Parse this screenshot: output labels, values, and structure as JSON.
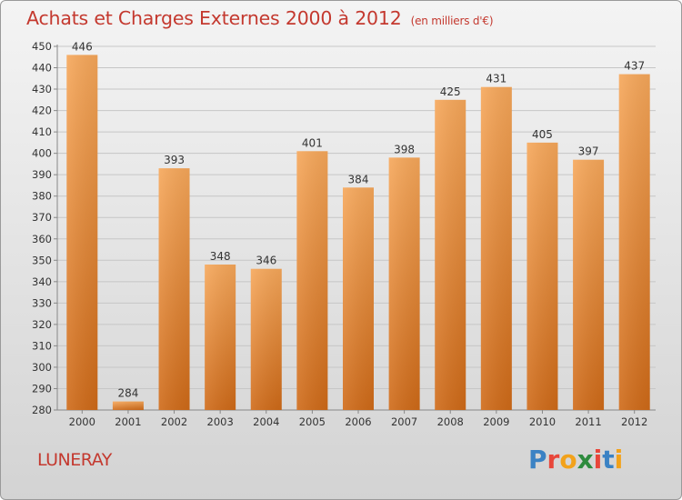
{
  "title": "Achats et Charges Externes 2000 à 2012",
  "subtitle": "(en milliers d'€)",
  "commune": "LUNERAY",
  "logo": {
    "letters": [
      "P",
      "r",
      "o",
      "x",
      "i",
      "t",
      "i"
    ],
    "colors": [
      "#3b82c4",
      "#e8463a",
      "#f2a21b",
      "#2e8b3e",
      "#e8463a",
      "#3b82c4",
      "#f2a21b"
    ]
  },
  "colors": {
    "bar_light": "#f6a75a",
    "bar_dark": "#cf6a18",
    "title": "#c4392f"
  },
  "chart_data": {
    "type": "bar",
    "categories": [
      "2000",
      "2001",
      "2002",
      "2003",
      "2004",
      "2005",
      "2006",
      "2007",
      "2008",
      "2009",
      "2010",
      "2011",
      "2012"
    ],
    "values": [
      446,
      284,
      393,
      348,
      346,
      401,
      384,
      398,
      425,
      431,
      405,
      397,
      437
    ],
    "ylim": [
      280,
      450
    ],
    "yticks": [
      280,
      290,
      300,
      310,
      320,
      330,
      340,
      350,
      360,
      370,
      380,
      390,
      400,
      410,
      420,
      430,
      440,
      450
    ],
    "grid": true,
    "data_labels": true
  }
}
